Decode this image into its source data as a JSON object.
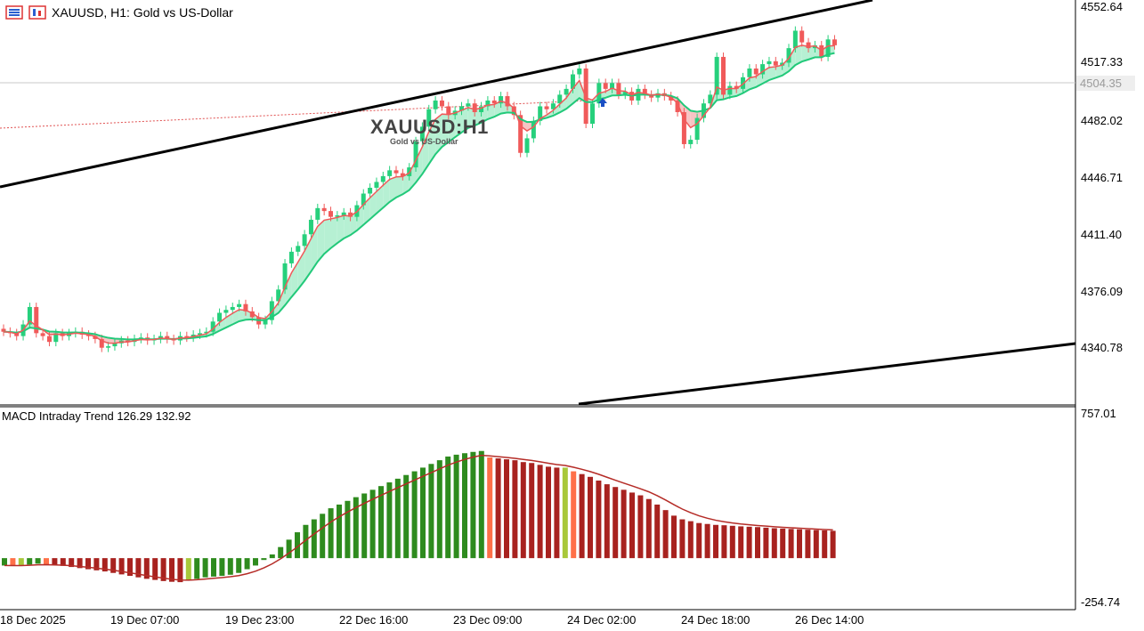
{
  "header": {
    "symbol_text": "XAUUSD, H1:  Gold vs US-Dollar"
  },
  "watermark": {
    "symbol": "XAUUSD:H1",
    "description": "Gold vs US-Dollar"
  },
  "price_axis": {
    "labels": [
      "4552.64",
      "4517.33",
      "4482.02",
      "4446.71",
      "4411.40",
      "4376.09",
      "4340.78"
    ],
    "current_price": "4504.35"
  },
  "time_axis": {
    "labels": [
      "18 Dec 2025",
      "19 Dec 07:00",
      "19 Dec 23:00",
      "22 Dec 16:00",
      "23 Dec 09:00",
      "24 Dec 02:00",
      "24 Dec 18:00",
      "26 Dec 14:00"
    ]
  },
  "macd": {
    "title": "MACD Intraday Trend  126.29 132.92",
    "scale_max": "757.01",
    "scale_min": "-254.74"
  },
  "colors": {
    "bull": "#26d07c",
    "bear": "#f05a5a",
    "fast_ma": "#f05a5a",
    "slow_ma": "#22c97a",
    "cloud_bull": "#b6f0d3",
    "cloud_bear": "#f7c4c4",
    "macd_up": "#2e8b1e",
    "macd_down": "#a8221f",
    "macd_down_light": "#ff7048",
    "macd_up_light": "#a8c83a",
    "signal": "#b52c27"
  },
  "chart_data": [
    {
      "type": "candlestick",
      "title": "XAUUSD, H1: Gold vs US-Dollar",
      "ylim": [
        4305,
        4555
      ],
      "close": [
        4333,
        4332,
        4330,
        4338,
        4350,
        4332,
        4330,
        4326,
        4332,
        4330,
        4332,
        4333,
        4331,
        4330,
        4328,
        4322,
        4323,
        4325,
        4327,
        4326,
        4328,
        4329,
        4327,
        4328,
        4330,
        4328,
        4327,
        4330,
        4329,
        4331,
        4332,
        4333,
        4340,
        4346,
        4348,
        4350,
        4352,
        4347,
        4343,
        4338,
        4341,
        4354,
        4362,
        4380,
        4388,
        4392,
        4400,
        4410,
        4418,
        4416,
        4412,
        4413,
        4415,
        4412,
        4420,
        4428,
        4432,
        4436,
        4440,
        4444,
        4442,
        4440,
        4446,
        4464,
        4474,
        4486,
        4492,
        4488,
        4482,
        4485,
        4488,
        4490,
        4484,
        4488,
        4492,
        4490,
        4495,
        4488,
        4482,
        4456,
        4466,
        4478,
        4488,
        4486,
        4490,
        4496,
        4500,
        4510,
        4514,
        4476,
        4490,
        4504,
        4500,
        4504,
        4496,
        4498,
        4492,
        4500,
        4496,
        4494,
        4497,
        4495,
        4492,
        4484,
        4462,
        4465,
        4480,
        4490,
        4496,
        4522,
        4496,
        4502,
        4500,
        4508,
        4514,
        4510,
        4517,
        4519,
        4516,
        4518,
        4528,
        4540,
        4532,
        4528,
        4530,
        4522,
        4534,
        4530
      ],
      "note": "approximate hourly closes read from price axis"
    },
    {
      "type": "bar",
      "title": "MACD Intraday Trend",
      "ylim": [
        -254.74,
        757.01
      ],
      "values": [
        -40,
        -42,
        -40,
        -35,
        -30,
        -35,
        -38,
        -42,
        -48,
        -54,
        -60,
        -66,
        -72,
        -80,
        -88,
        -96,
        -104,
        -112,
        -118,
        -124,
        -128,
        -130,
        -120,
        -112,
        -104,
        -100,
        -96,
        -90,
        -80,
        -60,
        -40,
        -10,
        20,
        60,
        100,
        140,
        180,
        210,
        240,
        270,
        290,
        310,
        330,
        350,
        370,
        390,
        410,
        430,
        450,
        470,
        490,
        510,
        530,
        550,
        560,
        568,
        575,
        580,
        545,
        540,
        535,
        530,
        520,
        515,
        505,
        495,
        490,
        490,
        470,
        455,
        440,
        420,
        400,
        385,
        370,
        355,
        340,
        320,
        290,
        260,
        230,
        210,
        200,
        190,
        185,
        180,
        178,
        175,
        172,
        170,
        168,
        165,
        162,
        160,
        158,
        156,
        154,
        152,
        150,
        148
      ],
      "signal": [
        132.92
      ]
    }
  ]
}
